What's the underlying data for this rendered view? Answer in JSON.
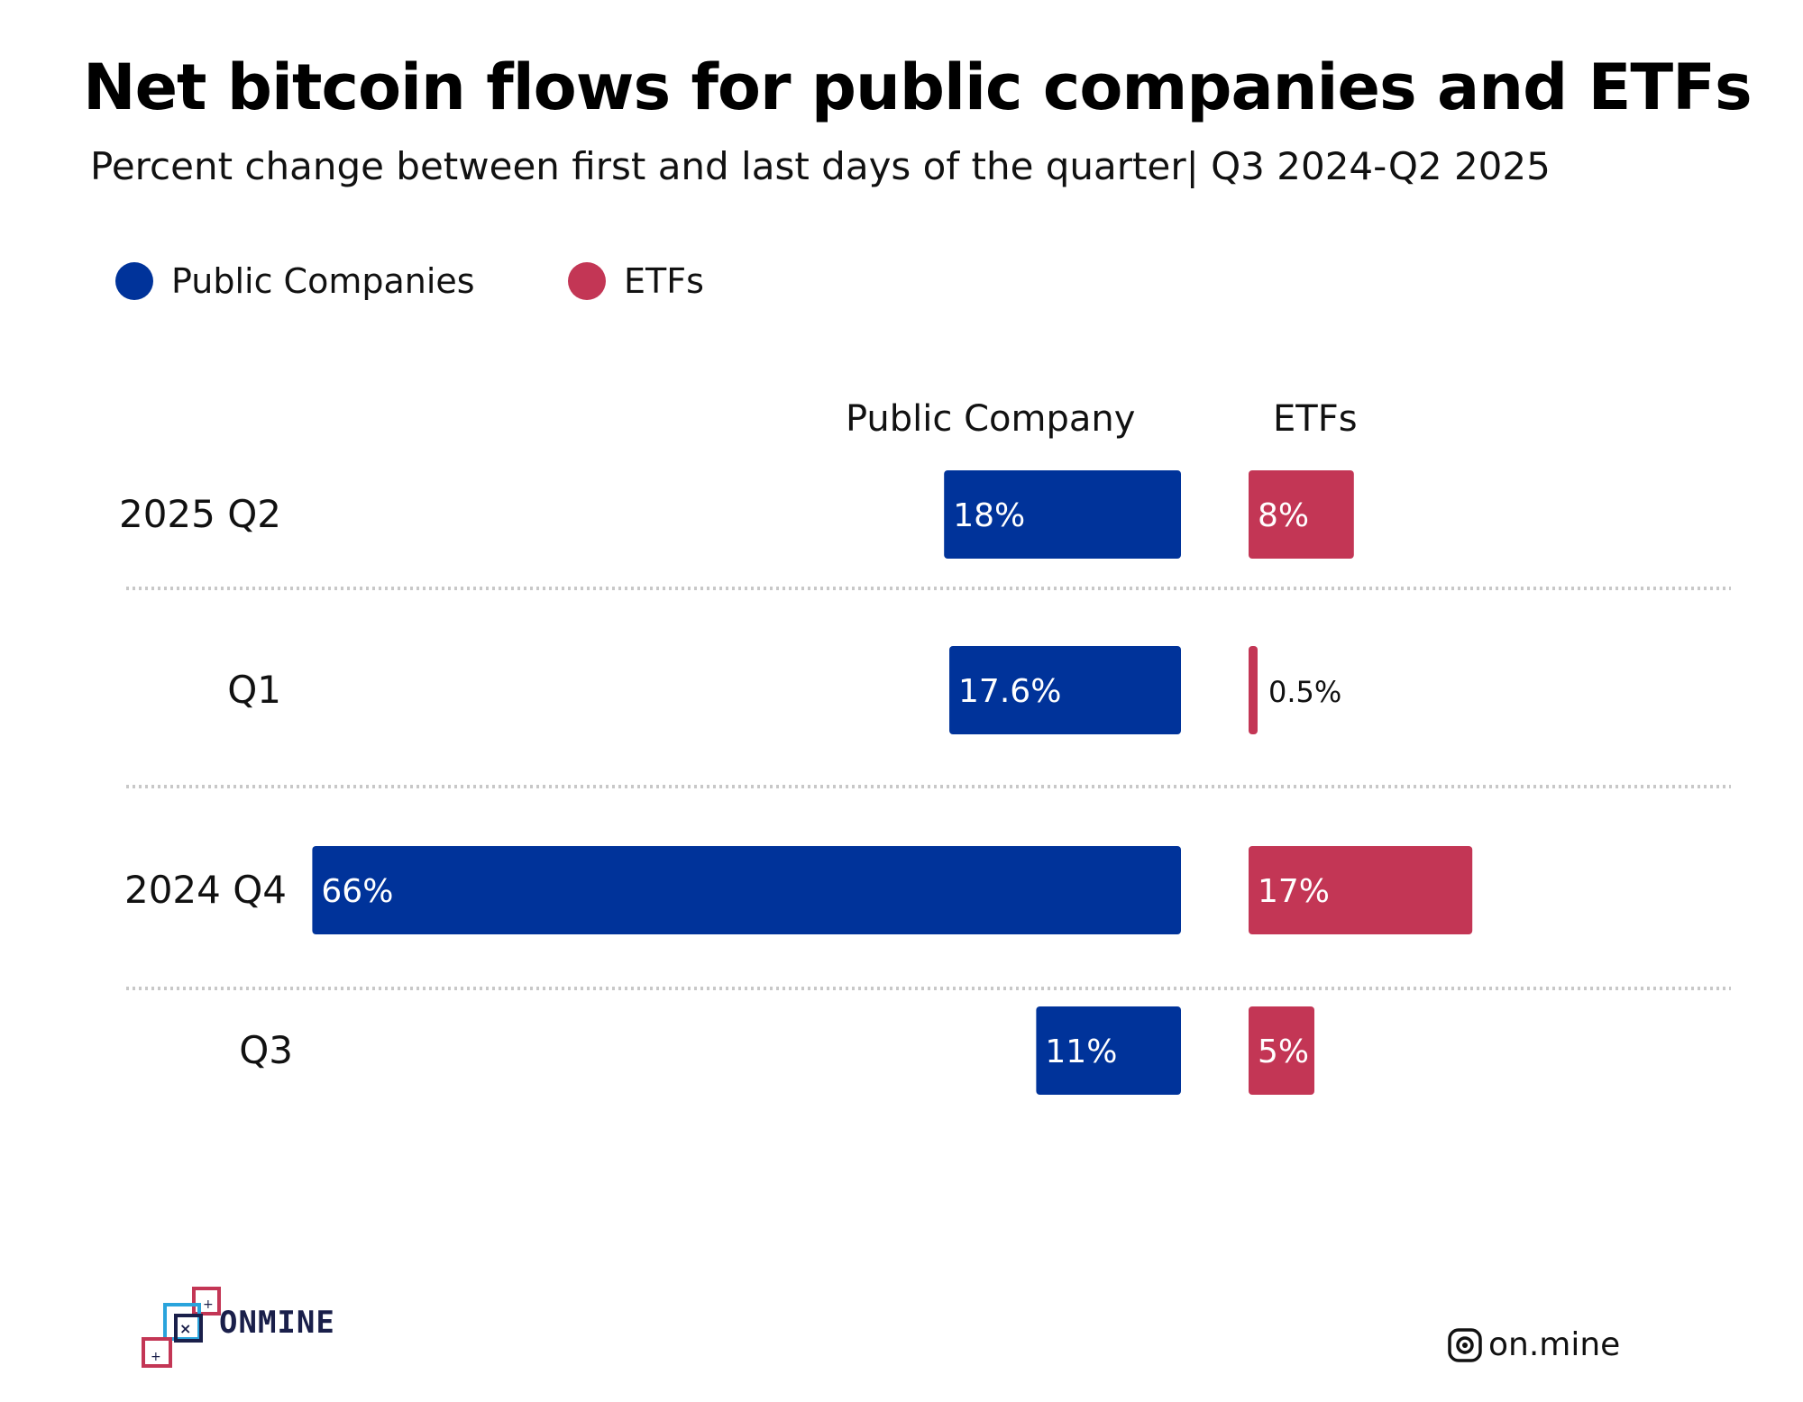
{
  "title": "Net bitcoin flows for public companies and ETFs",
  "subtitle": "Percent change between first and last days of the quarter| Q3 2024-Q2 2025",
  "colors": {
    "public_companies": "#00339a",
    "etfs": "#c33655",
    "divider": "#c8c8c8"
  },
  "legend": [
    {
      "label": "Public Companies",
      "color": "#00339a"
    },
    {
      "label": "ETFs",
      "color": "#c33655"
    }
  ],
  "chart_data": {
    "type": "bar",
    "orientation": "horizontal",
    "column_headers": [
      "Public Company",
      "ETFs"
    ],
    "categories": [
      "2025 Q2",
      "Q1",
      "2024 Q4",
      "Q3"
    ],
    "series": [
      {
        "name": "Public Companies",
        "values": [
          18,
          17.6,
          66,
          11
        ],
        "labels": [
          "18%",
          "17.6%",
          "66%",
          "11%"
        ]
      },
      {
        "name": "ETFs",
        "values": [
          8,
          0.5,
          17,
          5
        ],
        "labels": [
          "8%",
          "0.5%",
          "17%",
          "5%"
        ]
      }
    ],
    "grid": false,
    "legend_position": "top-left"
  },
  "footer": {
    "logo": {
      "text": "ONMINE",
      "icon": "onmine-logo-icon"
    },
    "handle": {
      "icon": "instagram-icon",
      "text": "on.mine"
    }
  }
}
